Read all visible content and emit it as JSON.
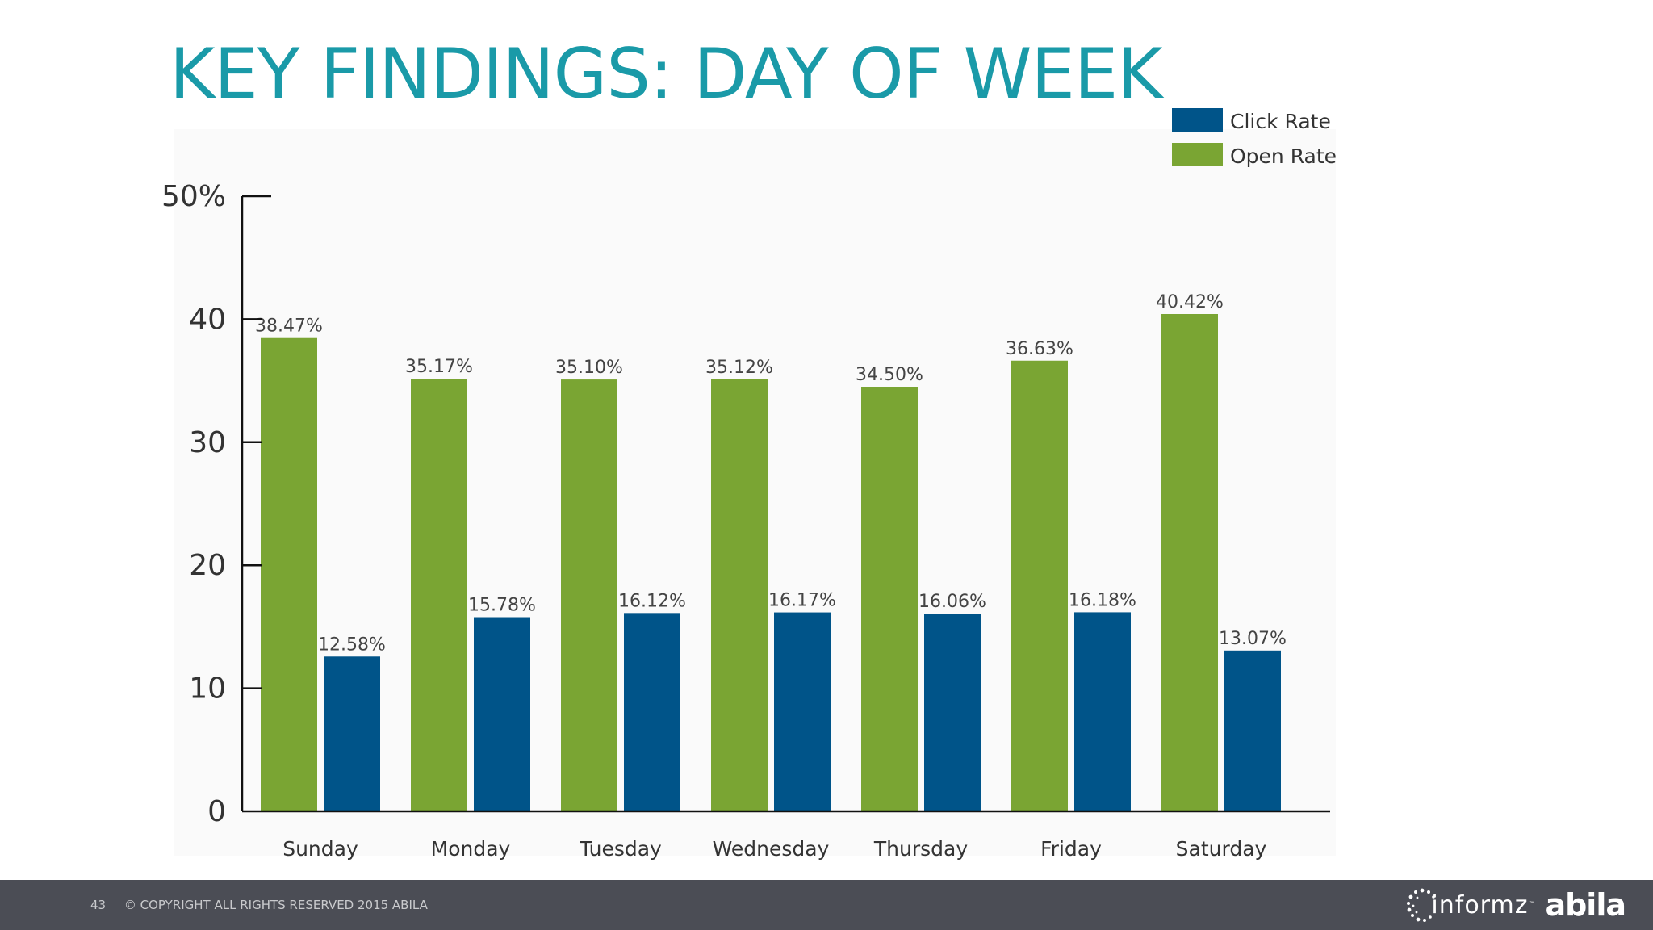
{
  "slide": {
    "title": "KEY FINDINGS:  DAY OF WEEK",
    "page_number": "43",
    "copyright": "© COPYRIGHT ALL RIGHTS RESERVED 2015 ABILA",
    "logo_informz": "informz",
    "logo_tm": "™",
    "logo_abila": "abila",
    "colors": {
      "title": "#1a9aa8",
      "open_rate": "#7aa533",
      "click_rate": "#005489",
      "footer": "#4b4d55"
    }
  },
  "chart_data": {
    "type": "bar",
    "categories": [
      "Sunday",
      "Monday",
      "Tuesday",
      "Wednesday",
      "Thursday",
      "Friday",
      "Saturday"
    ],
    "series": [
      {
        "name": "Open Rate",
        "color": "#7aa533",
        "values": [
          38.47,
          35.17,
          35.1,
          35.12,
          34.5,
          36.63,
          40.42
        ],
        "labels": [
          "38.47%",
          "35.17%",
          "35.10%",
          "35.12%",
          "34.50%",
          "36.63%",
          "40.42%"
        ]
      },
      {
        "name": "Click Rate",
        "color": "#005489",
        "values": [
          12.58,
          15.78,
          16.12,
          16.17,
          16.06,
          16.18,
          13.07
        ],
        "labels": [
          "12.58%",
          "15.78%",
          "16.12%",
          "16.17%",
          "16.06%",
          "16.18%",
          "13.07%"
        ]
      }
    ],
    "legend_order": [
      "Click Rate",
      "Open Rate"
    ],
    "y_ticks": [
      "0",
      "10",
      "20",
      "30",
      "40",
      "50%"
    ],
    "ylim": [
      0,
      50
    ],
    "grid": false,
    "legend_position": "top-right"
  }
}
